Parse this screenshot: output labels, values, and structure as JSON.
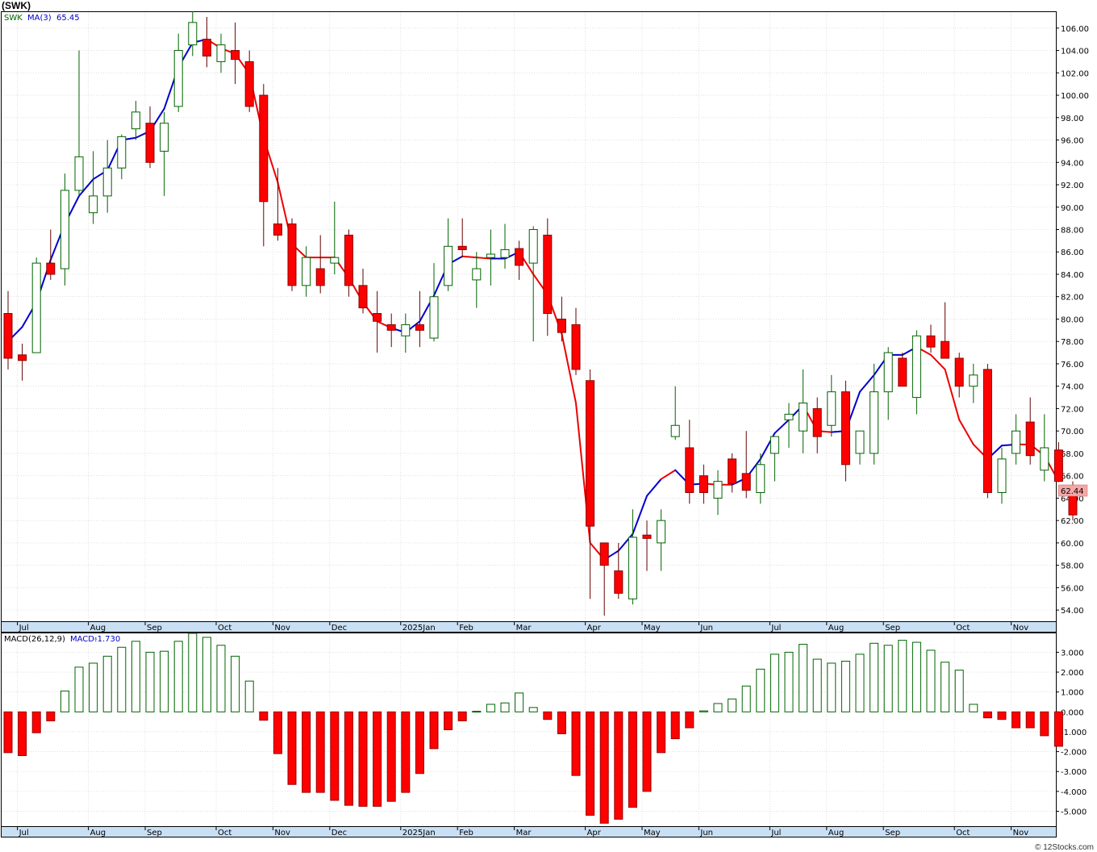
{
  "header": {
    "title": "(SWK)"
  },
  "footer": {
    "text": "© 12Stocks.com"
  },
  "chart_data": [
    {
      "type": "candlestick",
      "interval": "weekly",
      "legend": {
        "symbol": "SWK",
        "ma_label": "MA(3)",
        "ma_value": "65.45"
      },
      "last_price": "62.44",
      "y_ticks": [
        "54.00",
        "56.00",
        "58.00",
        "60.00",
        "62.00",
        "64.00",
        "66.00",
        "68.00",
        "70.00",
        "72.00",
        "74.00",
        "76.00",
        "78.00",
        "80.00",
        "82.00",
        "84.00",
        "86.00",
        "88.00",
        "90.00",
        "92.00",
        "94.00",
        "96.00",
        "98.00",
        "100.00",
        "102.00",
        "104.00",
        "106.00"
      ],
      "x_labels": [
        "Jul",
        "Aug",
        "Sep",
        "Oct",
        "Nov",
        "Dec",
        "2025Jan",
        "Feb",
        "Mar",
        "Apr",
        "May",
        "Jun",
        "Jul",
        "Aug",
        "Sep",
        "Oct",
        "Nov"
      ],
      "colors": {
        "up": "#006400",
        "down": "#ff0000",
        "ma_up": "#0000cc",
        "ma_down": "#ee0000"
      },
      "candles": [
        [
          80.5,
          82.5,
          75.5,
          76.5
        ],
        [
          76.8,
          77.8,
          74.5,
          76.3
        ],
        [
          77.0,
          85.5,
          77.0,
          85.0
        ],
        [
          85.0,
          88.0,
          83.5,
          84.0
        ],
        [
          84.5,
          93.0,
          83.0,
          91.5
        ],
        [
          91.5,
          104.0,
          91.0,
          94.5
        ],
        [
          89.5,
          95.0,
          88.5,
          91.0
        ],
        [
          91.0,
          96.0,
          89.5,
          93.5
        ],
        [
          93.5,
          96.5,
          92.5,
          96.3
        ],
        [
          97.0,
          99.5,
          96.0,
          98.5
        ],
        [
          97.5,
          99.0,
          93.5,
          94.0
        ],
        [
          95.0,
          98.5,
          91.0,
          97.5
        ],
        [
          99.0,
          105.5,
          98.5,
          104.0
        ],
        [
          104.5,
          107.5,
          103.5,
          106.5
        ],
        [
          105.0,
          107.0,
          102.5,
          103.5
        ],
        [
          103.0,
          105.5,
          102.0,
          104.5
        ],
        [
          104.0,
          106.5,
          101.0,
          103.2
        ],
        [
          103.0,
          104.0,
          98.5,
          99.0
        ],
        [
          100.0,
          101.0,
          86.5,
          90.5
        ],
        [
          88.5,
          93.5,
          87.0,
          87.5
        ],
        [
          88.5,
          89.0,
          82.5,
          83.0
        ],
        [
          83.0,
          86.5,
          82.0,
          85.5
        ],
        [
          84.5,
          87.5,
          82.3,
          83.0
        ],
        [
          85.0,
          90.5,
          84.0,
          85.5
        ],
        [
          87.5,
          88.0,
          82.0,
          83.0
        ],
        [
          83.0,
          84.5,
          80.5,
          81.0
        ],
        [
          80.5,
          82.5,
          77.0,
          79.8
        ],
        [
          79.5,
          80.5,
          77.5,
          79.0
        ],
        [
          78.5,
          80.5,
          77.0,
          79.5
        ],
        [
          79.5,
          82.5,
          77.5,
          79.0
        ],
        [
          78.3,
          85.0,
          78.0,
          82.0
        ],
        [
          83.0,
          89.0,
          82.5,
          86.5
        ],
        [
          86.5,
          89.0,
          85.5,
          86.2
        ],
        [
          83.5,
          86.0,
          81.0,
          84.5
        ],
        [
          85.5,
          88.0,
          83.0,
          85.8
        ],
        [
          85.5,
          88.5,
          84.5,
          86.2
        ],
        [
          86.3,
          87.0,
          83.5,
          84.8
        ],
        [
          85.0,
          88.3,
          78.0,
          88.0
        ],
        [
          87.5,
          89.0,
          78.5,
          80.5
        ],
        [
          80.0,
          82.0,
          78.0,
          78.8
        ],
        [
          79.5,
          81.0,
          75.0,
          75.5
        ],
        [
          74.5,
          75.5,
          55.0,
          61.5
        ],
        [
          60.0,
          60.0,
          53.5,
          58.0
        ],
        [
          57.5,
          60.0,
          55.0,
          55.5
        ],
        [
          55.0,
          63.0,
          54.5,
          60.5
        ],
        [
          60.7,
          62.0,
          57.5,
          60.4
        ],
        [
          60.0,
          63.0,
          57.5,
          62.0
        ],
        [
          69.5,
          74.0,
          69.2,
          70.5
        ],
        [
          68.5,
          71.0,
          63.5,
          64.5
        ],
        [
          66.0,
          67.0,
          63.5,
          64.5
        ],
        [
          64.0,
          66.5,
          62.5,
          65.5
        ],
        [
          67.5,
          68.0,
          64.5,
          65.3
        ],
        [
          66.2,
          70.0,
          64.0,
          64.7
        ],
        [
          64.5,
          68.0,
          63.5,
          67.0
        ],
        [
          68.0,
          69.5,
          65.5,
          69.5
        ],
        [
          71.0,
          72.5,
          68.5,
          71.5
        ],
        [
          70.0,
          75.5,
          68.0,
          72.5
        ],
        [
          72.0,
          73.0,
          68.0,
          69.5
        ],
        [
          70.5,
          75.0,
          69.5,
          73.5
        ],
        [
          73.5,
          74.5,
          65.5,
          67.0
        ],
        [
          68.0,
          69.5,
          67.0,
          70.0
        ],
        [
          68.0,
          76.0,
          67.0,
          73.5
        ],
        [
          73.5,
          77.5,
          71.0,
          77.0
        ],
        [
          76.5,
          77.0,
          74.0,
          74.0
        ],
        [
          73.0,
          79.0,
          71.5,
          78.5
        ],
        [
          78.5,
          79.5,
          77.0,
          77.5
        ],
        [
          78.0,
          81.5,
          76.5,
          76.5
        ],
        [
          76.5,
          77.0,
          73.0,
          74.0
        ],
        [
          74.0,
          76.0,
          72.5,
          75.0
        ],
        [
          75.5,
          76.0,
          64.0,
          64.5
        ],
        [
          64.5,
          68.5,
          63.5,
          67.5
        ],
        [
          68.0,
          71.5,
          67.0,
          70.0
        ],
        [
          70.8,
          73.0,
          67.0,
          67.8
        ],
        [
          66.5,
          71.5,
          65.5,
          68.5
        ],
        [
          68.3,
          69.0,
          65.5,
          65.5
        ],
        [
          65.0,
          65.5,
          62.0,
          62.5
        ]
      ],
      "ma3": [
        [
          78.0,
          false
        ],
        [
          79.3,
          false
        ],
        [
          81.5,
          false
        ],
        [
          85.3,
          false
        ],
        [
          88.5,
          false
        ],
        [
          91.0,
          false
        ],
        [
          92.5,
          false
        ],
        [
          93.3,
          false
        ],
        [
          96.0,
          false
        ],
        [
          96.2,
          false
        ],
        [
          96.8,
          false
        ],
        [
          98.8,
          false
        ],
        [
          102.5,
          false
        ],
        [
          104.7,
          false
        ],
        [
          105.0,
          false
        ],
        [
          104.2,
          true
        ],
        [
          103.7,
          true
        ],
        [
          101.9,
          true
        ],
        [
          96.2,
          true
        ],
        [
          92.2,
          true
        ],
        [
          86.7,
          true
        ],
        [
          85.5,
          true
        ],
        [
          85.5,
          true
        ],
        [
          85.5,
          true
        ],
        [
          83.7,
          true
        ],
        [
          81.5,
          true
        ],
        [
          79.8,
          true
        ],
        [
          79.2,
          true
        ],
        [
          78.8,
          false
        ],
        [
          79.8,
          false
        ],
        [
          82.1,
          false
        ],
        [
          84.9,
          false
        ],
        [
          85.6,
          false
        ],
        [
          85.5,
          true
        ],
        [
          85.4,
          true
        ],
        [
          85.4,
          false
        ],
        [
          86.0,
          false
        ],
        [
          84.0,
          true
        ],
        [
          82.2,
          true
        ],
        [
          78.7,
          true
        ],
        [
          72.5,
          true
        ],
        [
          60.0,
          true
        ],
        [
          58.5,
          true
        ],
        [
          59.3,
          false
        ],
        [
          60.8,
          false
        ],
        [
          64.2,
          false
        ],
        [
          65.7,
          false
        ],
        [
          66.5,
          true
        ],
        [
          65.2,
          false
        ],
        [
          65.3,
          false
        ],
        [
          65.2,
          true
        ],
        [
          65.2,
          true
        ],
        [
          65.8,
          false
        ],
        [
          67.5,
          false
        ],
        [
          69.8,
          false
        ],
        [
          71.0,
          false
        ],
        [
          72.3,
          false
        ],
        [
          70.0,
          true
        ],
        [
          69.9,
          true
        ],
        [
          70.0,
          false
        ],
        [
          73.5,
          false
        ],
        [
          75.0,
          false
        ],
        [
          76.8,
          false
        ],
        [
          76.8,
          false
        ],
        [
          77.5,
          false
        ],
        [
          76.8,
          true
        ],
        [
          75.5,
          true
        ],
        [
          71.0,
          true
        ],
        [
          68.8,
          true
        ],
        [
          67.5,
          true
        ],
        [
          68.7,
          false
        ],
        [
          68.8,
          false
        ],
        [
          68.8,
          true
        ],
        [
          67.8,
          true
        ],
        [
          65.5,
          true
        ]
      ],
      "ylim": [
        53,
        107.5
      ]
    },
    {
      "type": "bar",
      "legend": {
        "name": "MACD(26,12,9)",
        "value_label": "MACD:",
        "value": "-1.730"
      },
      "y_ticks": [
        "-5.000",
        "-4.000",
        "-3.000",
        "-2.000",
        "-1.000",
        "0.000",
        "1.000",
        "2.000",
        "3.000"
      ],
      "x_labels": [
        "Jul",
        "Aug",
        "Sep",
        "Oct",
        "Nov",
        "Dec",
        "2025Jan",
        "Feb",
        "Mar",
        "Apr",
        "May",
        "Jun",
        "Jul",
        "Aug",
        "Sep",
        "Oct",
        "Nov"
      ],
      "colors": {
        "positive": "#006400",
        "negative": "#ff0000"
      },
      "values": [
        -2.05,
        -2.2,
        -1.05,
        -0.45,
        1.05,
        2.25,
        2.45,
        2.8,
        3.25,
        3.55,
        3.0,
        3.05,
        3.55,
        3.95,
        3.75,
        3.35,
        2.8,
        1.55,
        -0.42,
        -2.1,
        -3.65,
        -4.05,
        -4.05,
        -4.45,
        -4.7,
        -4.75,
        -4.75,
        -4.5,
        -4.05,
        -3.1,
        -1.85,
        -0.9,
        -0.45,
        0.03,
        0.38,
        0.45,
        0.95,
        0.22,
        -0.38,
        -1.1,
        -3.2,
        -5.2,
        -5.6,
        -5.4,
        -4.8,
        -4.0,
        -2.05,
        -1.35,
        -0.8,
        0.05,
        0.42,
        0.65,
        1.3,
        2.15,
        2.9,
        3.0,
        3.4,
        2.65,
        2.45,
        2.55,
        2.9,
        3.45,
        3.35,
        3.6,
        3.5,
        3.1,
        2.5,
        2.1,
        0.38,
        -0.3,
        -0.38,
        -0.8,
        -0.8,
        -1.2,
        -1.73
      ],
      "ylim": [
        -5.75,
        3.95
      ]
    }
  ]
}
